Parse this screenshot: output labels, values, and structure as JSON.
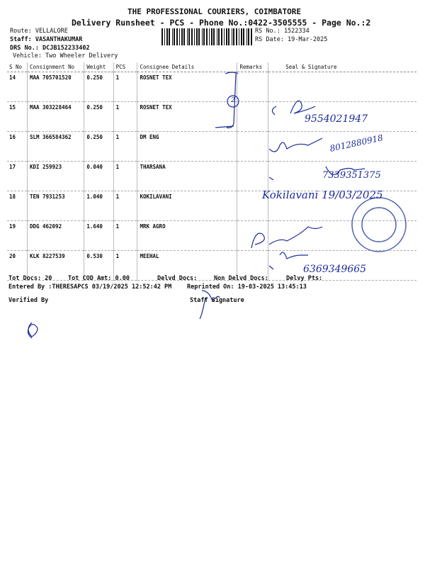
{
  "header": {
    "company": "THE PROFESSIONAL COURIERS, COIMBATORE",
    "title": "Delivery Runsheet - PCS - Phone No.:0422-3505555 - Page No.:2",
    "route": "Route: VELLALORE",
    "staff": "Staff: VASANTHAKUMAR",
    "drs_no": "DRS No.: DCJB152233402",
    "vehicle": "Vehicle: Two Wheeler Delivery",
    "rs_no": "RS No.: 1522334",
    "rs_date": "RS Date: 19-Mar-2025"
  },
  "table": {
    "columns": [
      "S No",
      "Consignment No",
      "Weight",
      "PCS",
      "Consignee Details",
      "Remarks",
      "Seal & Signature"
    ],
    "rows": [
      {
        "sno": "14",
        "cons": "MAA 705701520",
        "weight": "0.250",
        "pcs": "1",
        "consignee": "ROSNET TEX"
      },
      {
        "sno": "15",
        "cons": "MAA 303228464",
        "weight": "0.250",
        "pcs": "1",
        "consignee": "ROSNET TEX"
      },
      {
        "sno": "16",
        "cons": "SLM 366584362",
        "weight": "0.250",
        "pcs": "1",
        "consignee": "DM ENG"
      },
      {
        "sno": "17",
        "cons": "KDI 259923",
        "weight": "0.040",
        "pcs": "1",
        "consignee": "THARSANA"
      },
      {
        "sno": "18",
        "cons": "TEN 7931253",
        "weight": "1.040",
        "pcs": "1",
        "consignee": "KOKILAVANI"
      },
      {
        "sno": "19",
        "cons": "DDG 462092",
        "weight": "1.640",
        "pcs": "1",
        "consignee": "MRK AGRO"
      },
      {
        "sno": "20",
        "cons": "KLK 8227539",
        "weight": "0.530",
        "pcs": "1",
        "consignee": "MEEHAL"
      }
    ]
  },
  "footer": {
    "tot_docs": "Tot Docs:  20",
    "tot_cod": "Tot COD Amt:    0.00",
    "delvd": "Delvd Docs:",
    "non_delvd": "Non Delvd Docs:",
    "delvy_pts": "Delvy Pts:",
    "entered_by": "Entered By :THERESAPCS 03/19/2025 12:52:42 PM",
    "reprinted": "Reprinted On: 19-03-2025 13:45:13",
    "verified_by": "Verified By",
    "staff_signature": "Staff Signature"
  },
  "handwriting": {
    "phone1": "9554021947",
    "phone2": "8012880918",
    "phone3": "7339351375",
    "name_date": "Kokilavani 19/03/2025",
    "phone4": "6369349665",
    "remark_mark": "2"
  },
  "colors": {
    "ink": "#1a2a9a",
    "text": "#111111"
  }
}
